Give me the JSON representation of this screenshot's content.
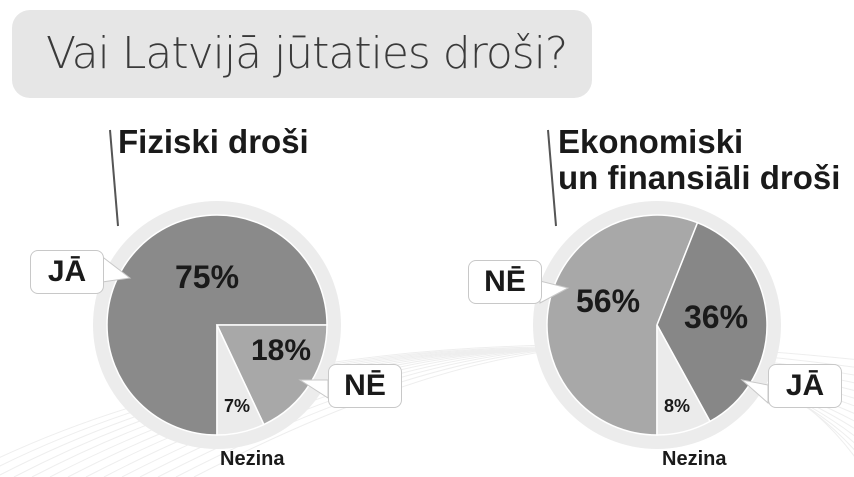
{
  "title": "Vai Latvijā jūtaties droši?",
  "chart_data": [
    {
      "type": "pie",
      "title": "Fiziski droši",
      "slices": [
        {
          "label": "JĀ",
          "value": 75,
          "display": "75%",
          "color": "#8a8a8a"
        },
        {
          "label": "NĒ",
          "value": 18,
          "display": "18%",
          "color": "#a8a8a8"
        },
        {
          "label": "Nezina",
          "value": 7,
          "display": "7%",
          "color": "#ebebeb"
        }
      ]
    },
    {
      "type": "pie",
      "title": "Ekonomiski un finansiāli droši",
      "title_lines": [
        "Ekonomiski",
        "un finansiāli droši"
      ],
      "slices": [
        {
          "label": "NĒ",
          "value": 56,
          "display": "56%",
          "color": "#a8a8a8"
        },
        {
          "label": "JĀ",
          "value": 36,
          "display": "36%",
          "color": "#878787"
        },
        {
          "label": "Nezina",
          "value": 8,
          "display": "8%",
          "color": "#ebebeb"
        }
      ]
    }
  ]
}
